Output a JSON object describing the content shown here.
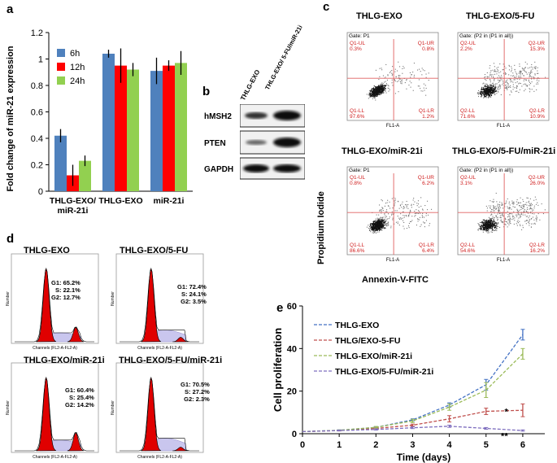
{
  "panels": {
    "a": "a",
    "b": "b",
    "c": "c",
    "d": "d",
    "e": "e"
  },
  "panel_a": {
    "ylabel": "Fold change of miR-21 expression",
    "y_ticks": [
      "0",
      "0.2",
      "0.4",
      "0.6",
      "0.8",
      "1",
      "1.2"
    ],
    "legend": [
      "6h",
      "12h",
      "24h"
    ],
    "colors": [
      "#4f81bd",
      "#ff0000",
      "#92d050"
    ]
  },
  "panel_b": {
    "columns": [
      "THLG-EXO",
      "THLG-EXO/ 5-FU/miR-21i"
    ],
    "rows": [
      "hMSH2",
      "PTEN",
      "GAPDH"
    ]
  },
  "panel_c": {
    "ylabel": "Propidium Iodide",
    "xlabel": "Annexin-V-FITC",
    "plots": [
      {
        "title": "THLG-EXO",
        "gate": "Gate: P1",
        "ul": "Q1-UL",
        "ul_v": "0.3%",
        "ur": "Q1-UR",
        "ur_v": "0.8%",
        "ll": "Q1-LL",
        "ll_v": "97.6%",
        "lr": "Q1-LR",
        "lr_v": "1.2%"
      },
      {
        "title": "THLG-EXO/5-FU",
        "gate": "Gate: (P2 in (P1 in all))",
        "ul": "Q2-UL",
        "ul_v": "2.2%",
        "ur": "Q2-UR",
        "ur_v": "15.3%",
        "ll": "Q2-LL",
        "ll_v": "71.6%",
        "lr": "Q2-LR",
        "lr_v": "10.9%"
      },
      {
        "title": "THLG-EXO/miR-21i",
        "gate": "Gate: P1",
        "ul": "Q1-UL",
        "ul_v": "0.8%",
        "ur": "Q1-UR",
        "ur_v": "6.2%",
        "ll": "Q1-LL",
        "ll_v": "86.6%",
        "lr": "Q1-LR",
        "lr_v": "6.4%"
      },
      {
        "title": "THLG-EXO/5-FU/miR-21i",
        "gate": "Gate: (P2 in (P1 in all))",
        "ul": "Q2-UL",
        "ul_v": "3.1%",
        "ur": "Q2-UR",
        "ur_v": "26.0%",
        "ll": "Q2-LL",
        "ll_v": "54.6%",
        "lr": "Q2-LR",
        "lr_v": "16.2%"
      }
    ],
    "axis_label": "FL1-A"
  },
  "panel_d": {
    "plots": [
      {
        "title": "THLG-EXO",
        "g1": "G1: 65.2%",
        "s": "S: 22.1%",
        "g2": "G2: 12.7%"
      },
      {
        "title": "THLG-EXO/5-FU",
        "g1": "G1: 72.4%",
        "s": "S: 24.1%",
        "g2": "G2: 3.5%"
      },
      {
        "title": "THLG-EXO/miR-21i",
        "g1": "G1: 60.4%",
        "s": "S: 25.4%",
        "g2": "G2: 14.2%"
      },
      {
        "title": "THLG-EXO/5-FU/miR-21i",
        "g1": "G1: 70.5%",
        "s": "S: 27.2%",
        "g2": "G2: 2.3%"
      }
    ],
    "xaxis": "Channels (FL2-A-FL2-A)",
    "yaxis": "Number"
  },
  "chart_data": [
    {
      "type": "bar",
      "title": "",
      "categories": [
        "THLG-EXO/ miR-21i",
        "THLG-EXO",
        "miR-21i"
      ],
      "series": [
        {
          "name": "6h",
          "values": [
            0.42,
            1.04,
            0.91
          ],
          "errors": [
            0.05,
            0.03,
            0.1
          ]
        },
        {
          "name": "12h",
          "values": [
            0.12,
            0.95,
            0.95
          ],
          "errors": [
            0.08,
            0.13,
            0.04
          ]
        },
        {
          "name": "24h",
          "values": [
            0.23,
            0.92,
            0.97
          ],
          "errors": [
            0.04,
            0.05,
            0.09
          ]
        }
      ],
      "xlabel": "",
      "ylabel": "Fold change of miR-21 expression",
      "ylim": [
        0,
        1.2
      ],
      "legend": "top-left"
    },
    {
      "type": "line",
      "title": "",
      "x": [
        0,
        1,
        2,
        3,
        4,
        5,
        6
      ],
      "x_ticks": [
        "0",
        "1",
        "2",
        "3",
        "4",
        "5",
        "6"
      ],
      "y_ticks": [
        "0",
        "20",
        "40",
        "60"
      ],
      "series": [
        {
          "name": "THLG-EXO",
          "color": "#4472c4",
          "values": [
            1,
            1.6,
            3,
            6.5,
            13.5,
            23,
            46.5
          ],
          "errors": [
            0,
            0.2,
            0.3,
            0.5,
            1,
            2.5,
            2.5
          ]
        },
        {
          "name": "THLG/EXO-5-FU",
          "color": "#c0504d",
          "values": [
            1,
            1.5,
            2.5,
            4,
            7,
            10.5,
            11
          ],
          "errors": [
            0,
            0.2,
            0.3,
            0.5,
            1.5,
            1.5,
            3
          ]
        },
        {
          "name": "THLG-EXO/miR-21i",
          "color": "#9bbb59",
          "values": [
            1,
            1.6,
            3,
            6,
            12.5,
            20.5,
            37.5
          ],
          "errors": [
            0,
            0.2,
            0.4,
            0.8,
            1.5,
            3.5,
            2.5
          ]
        },
        {
          "name": "THLG-EXO/5-FU/miR-21i",
          "color": "#7f6fbf",
          "values": [
            1,
            1.5,
            2,
            2.8,
            3.5,
            2.5,
            1.5
          ],
          "errors": [
            0,
            0.2,
            0.3,
            0.4,
            0.5,
            0.4,
            0.3
          ]
        }
      ],
      "annotations": [
        "*",
        "**"
      ],
      "xlabel": "Time (days)",
      "ylabel": "Cell proliferation",
      "ylim": [
        0,
        60
      ],
      "legend": "top-left"
    }
  ]
}
